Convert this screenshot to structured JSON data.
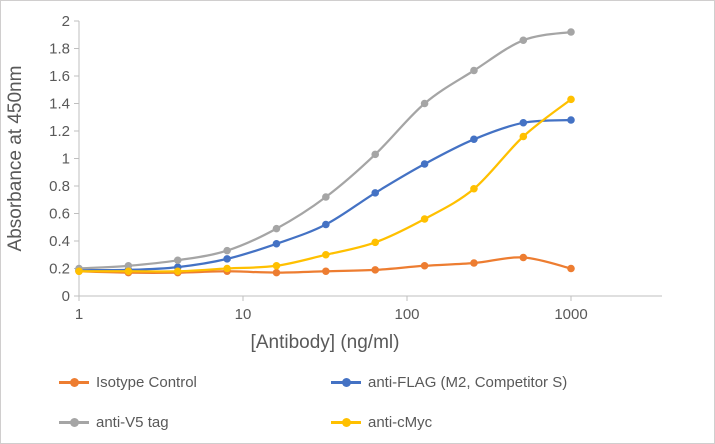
{
  "chart_data": {
    "type": "line",
    "xscale": "log",
    "x": [
      1,
      2,
      4,
      8,
      16,
      32,
      64,
      128,
      256,
      512,
      1000
    ],
    "xticks": [
      1,
      10,
      100,
      1000
    ],
    "xlabel": "[Antibody] (ng/ml)",
    "ylabel": "Absorbance at 450nm",
    "ylim": [
      0,
      2
    ],
    "ytick_step": 0.2,
    "grid": false,
    "smoothed": true,
    "marker": "circle",
    "legend_position": "bottom",
    "axis_color": "#BFBFBF",
    "text_color": "#595959",
    "series": [
      {
        "name": "Isotype Control",
        "color": "#ED7D31",
        "values": [
          0.18,
          0.17,
          0.17,
          0.18,
          0.17,
          0.18,
          0.19,
          0.22,
          0.24,
          0.28,
          0.2
        ]
      },
      {
        "name": "anti-FLAG (M2, Competitor S)",
        "color": "#4472C4",
        "values": [
          0.19,
          0.19,
          0.21,
          0.27,
          0.38,
          0.52,
          0.75,
          0.96,
          1.14,
          1.26,
          1.28
        ]
      },
      {
        "name": "anti-V5 tag",
        "color": "#A5A5A5",
        "values": [
          0.2,
          0.22,
          0.26,
          0.33,
          0.49,
          0.72,
          1.03,
          1.4,
          1.64,
          1.86,
          1.92
        ]
      },
      {
        "name": "anti-cMyc",
        "color": "#FFC000",
        "values": [
          0.18,
          0.18,
          0.18,
          0.2,
          0.22,
          0.3,
          0.39,
          0.56,
          0.78,
          1.16,
          1.43
        ]
      }
    ]
  }
}
